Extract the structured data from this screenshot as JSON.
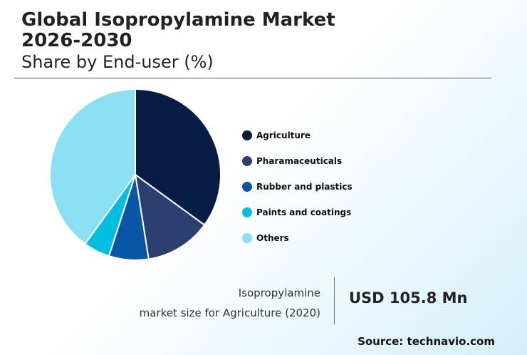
{
  "title_line1": "Global Isopropylamine Market",
  "title_line2": "2026-2030",
  "subtitle": "Share by End-user (%)",
  "chart_data": {
    "type": "pie",
    "labels": [
      "Agriculture",
      "Pharamaceuticals",
      "Rubber and plastics",
      "Paints and coatings",
      "Others"
    ],
    "values": [
      35,
      12.5,
      7.5,
      5,
      40
    ],
    "colors": [
      "#061c45",
      "#2b3f70",
      "#0856a4",
      "#00bedd",
      "#8ae0f2"
    ],
    "start_angle": "12 o'clock",
    "direction": "clockwise",
    "legend_position": "right"
  },
  "info": {
    "line1": "Isopropylamine",
    "line2": "market size for Agriculture (2020)",
    "value": "USD 105.8 Mn"
  },
  "source": "Source: technavio.com"
}
